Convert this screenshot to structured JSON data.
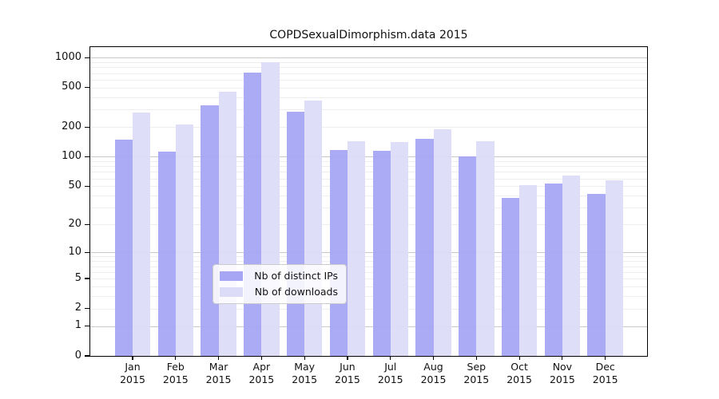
{
  "chart_data": {
    "type": "bar",
    "title": "COPDSexualDimorphism.data 2015",
    "categories": [
      "Jan",
      "Feb",
      "Mar",
      "Apr",
      "May",
      "Jun",
      "Jul",
      "Aug",
      "Sep",
      "Oct",
      "Nov",
      "Dec"
    ],
    "category_year": "2015",
    "series": [
      {
        "name": "Nb of distinct IPs",
        "color": "#a6a6f4",
        "values": [
          150,
          112,
          331,
          705,
          286,
          117,
          114,
          153,
          100,
          38,
          53,
          42
        ]
      },
      {
        "name": "Nb of downloads",
        "color": "#dcdcf8",
        "values": [
          278,
          212,
          450,
          905,
          370,
          143,
          140,
          191,
          144,
          51,
          64,
          57
        ]
      }
    ],
    "xlabel": "",
    "ylabel": "",
    "yscale": "log1p",
    "ylim": [
      0,
      1280
    ],
    "y_ticks": [
      0,
      1,
      2,
      5,
      10,
      20,
      50,
      100,
      200,
      500,
      1000
    ],
    "grid": {
      "major_at": [
        1,
        10,
        100,
        1000
      ],
      "minor": "log-decades",
      "shown": true
    },
    "legend": {
      "position": "lower-center",
      "entries": [
        "Nb of distinct IPs",
        "Nb of downloads"
      ]
    }
  },
  "colors": {
    "background": "#ffffff",
    "spine": "#000000",
    "grid_major": "#c8c8c8",
    "grid_minor": "#eeeeee",
    "text": "#111111",
    "legend_border": "#cccccc"
  }
}
